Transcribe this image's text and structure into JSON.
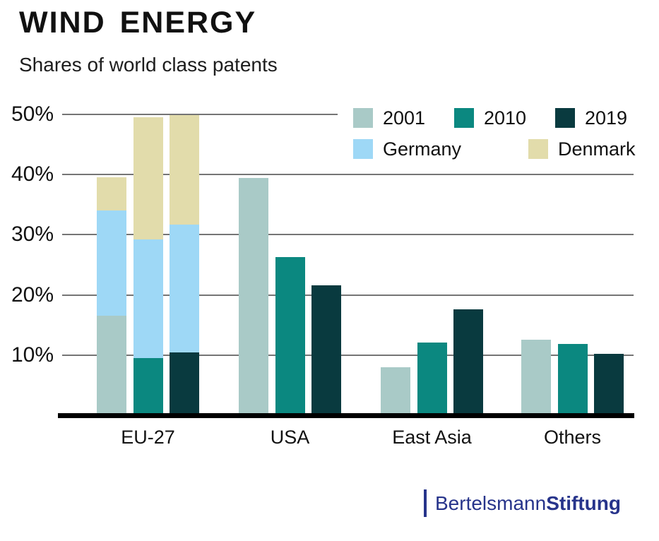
{
  "header": {
    "title": "WIND ENERGY",
    "subtitle": "Shares of world class patents"
  },
  "chart_data": {
    "type": "bar",
    "title": "WIND ENERGY",
    "subtitle": "Shares of world class patents",
    "unit": "percent",
    "grid": true,
    "legend_position": "top-right",
    "categories": [
      "EU-27",
      "USA",
      "East Asia",
      "Others"
    ],
    "years": [
      "2001",
      "2010",
      "2019"
    ],
    "series": [
      {
        "name": "2001",
        "color": "#a9cac7",
        "values": [
          16.5,
          39.4,
          8.0,
          12.6
        ]
      },
      {
        "name": "2010",
        "color": "#0b8880",
        "values": [
          9.5,
          26.3,
          12.1,
          11.8
        ]
      },
      {
        "name": "2019",
        "color": "#093a3f",
        "values": [
          10.5,
          21.6,
          17.6,
          10.2
        ]
      }
    ],
    "eu27_stacked_segments": [
      {
        "name": "Germany",
        "color": "#9ed8f6",
        "values_by_year": [
          17.5,
          19.7,
          21.3
        ]
      },
      {
        "name": "Denmark",
        "color": "#e2dcab",
        "values_by_year": [
          5.5,
          20.3,
          18.2
        ]
      }
    ],
    "eu27_cumulative_tops": {
      "2001": {
        "national": 16.5,
        "germany": 34.0,
        "denmark": 39.5
      },
      "2010": {
        "national": 9.5,
        "germany": 29.2,
        "denmark": 49.5
      },
      "2019": {
        "national": 10.5,
        "germany": 31.8,
        "denmark": 50.0
      }
    },
    "ylim": [
      0,
      50
    ],
    "yticks": [
      {
        "label": "50%",
        "value": 50
      },
      {
        "label": "40%",
        "value": 40
      },
      {
        "label": "30%",
        "value": 30
      },
      {
        "label": "20%",
        "value": 20
      },
      {
        "label": "10%",
        "value": 10
      }
    ],
    "legend": [
      {
        "label": "2001",
        "color": "#a9cac7"
      },
      {
        "label": "2010",
        "color": "#0b8880"
      },
      {
        "label": "2019",
        "color": "#093a3f"
      },
      {
        "label": "Germany",
        "color": "#9ed8f6"
      },
      {
        "label": "Denmark",
        "color": "#e2dcab"
      }
    ]
  },
  "footer": {
    "brand_regular": "Bertelsmann",
    "brand_bold": "Stiftung",
    "brand_color": "#27348b"
  },
  "style": {
    "gridline_color": "#757575",
    "baseline_color": "#000000",
    "text_color": "#111111"
  }
}
